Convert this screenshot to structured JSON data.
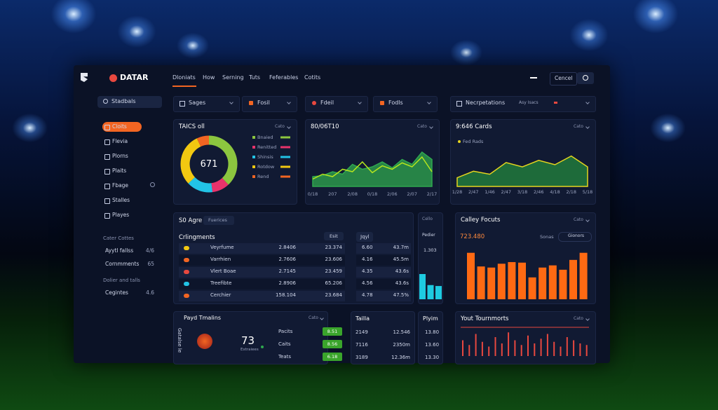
{
  "header": {
    "logo": "DATAR",
    "nav": [
      "Dloniats",
      "How",
      "Serning",
      "Tuts",
      "Feferables",
      "Cotits"
    ],
    "action": "Cencel"
  },
  "sidebar": {
    "search": "Stadbals",
    "items": [
      "Cloits",
      "Flevia",
      "Plorns",
      "Plaits",
      "Fbage",
      "Stalles",
      "Playes"
    ],
    "sections": [
      {
        "title": "Cater Cottes",
        "items": [
          {
            "label": "Ayytl fallss",
            "value": "4/6"
          },
          {
            "label": "Cornmments",
            "value": "65"
          }
        ]
      },
      {
        "title": "Dolier and talls",
        "items": [
          {
            "label": "Cegintes",
            "value": "4.6"
          }
        ]
      }
    ]
  },
  "filters": [
    "Sages",
    "Fosil",
    "Fdeil",
    "Fodls",
    "Necrpetations"
  ],
  "filter_note": "Asy Isacs",
  "table": {
    "title": "S0 Agre",
    "tab": "Fuerices",
    "heading": "Crlingments",
    "button": "Esit",
    "rows": [
      [
        "Veyrfume",
        "2.8406",
        "23.374"
      ],
      [
        "Varrhien",
        "2.7606",
        "23.606"
      ],
      [
        "Vlert Boae",
        "2.7145",
        "23.459"
      ],
      [
        "Treefibte",
        "2.8906",
        "65.206"
      ],
      [
        "Cerchier",
        "158.104",
        "23.684"
      ]
    ]
  },
  "side_table": {
    "title": "Jqyl",
    "rows": [
      [
        "6.60",
        "43.7m"
      ],
      [
        "4.16",
        "45.5m"
      ],
      [
        "4.35",
        "43.6s"
      ],
      [
        "4.56",
        "43.6s"
      ],
      [
        "4.78",
        "47.5%"
      ]
    ]
  },
  "player": {
    "title": "Payd Tmalins",
    "action": "Cato",
    "side_label": "Gatalse le",
    "score": "73",
    "score_label": "Extraiees",
    "rows": [
      {
        "label": "Pacits",
        "value": "8.51"
      },
      {
        "label": "Caits",
        "value": "8.56"
      },
      {
        "label": "Teats",
        "value": "6.18"
      }
    ]
  },
  "tailla": {
    "title": "Tailla",
    "rows": [
      [
        "2149",
        "12.546"
      ],
      [
        "7116",
        "2350m"
      ],
      [
        "3189",
        "12.36m"
      ]
    ]
  },
  "plyim": {
    "title": "Plyim",
    "values": [
      "13.80",
      "13.60",
      "13.30"
    ]
  },
  "chart_data": [
    {
      "type": "pie",
      "title": "TAICS oll",
      "action": "Cato",
      "center_label": "671",
      "categories": [
        "Bnaied",
        "Renitted",
        "Shinsis",
        "Rotdow",
        "Rend"
      ],
      "values": [
        38,
        10,
        15,
        30,
        7
      ],
      "colors": [
        "#8cc63f",
        "#e8336b",
        "#22c3e6",
        "#f2c811",
        "#f26522"
      ]
    },
    {
      "type": "line",
      "title": "80/06T10",
      "action": "Cato",
      "categories": [
        "0/18",
        null,
        "207",
        null,
        "2/08",
        null,
        "0/18",
        null,
        "2/06",
        null,
        "2/07",
        null,
        "2/17"
      ],
      "ylim": [
        0,
        100
      ],
      "series": [
        {
          "color": "#2fa84f",
          "values": [
            20,
            22,
            30,
            25,
            45,
            35,
            40,
            50,
            38,
            55,
            45,
            70,
            55
          ]
        },
        {
          "color": "#b5e61d",
          "values": [
            15,
            25,
            20,
            35,
            30,
            50,
            28,
            42,
            35,
            48,
            40,
            60,
            30
          ]
        }
      ]
    },
    {
      "type": "area",
      "title": "9:646 Cards",
      "action": "Cato",
      "legend": "Fed Rads",
      "color": "#e6d51e",
      "categories": [
        "1/28",
        "2/47",
        "1/46",
        "2/47",
        "3/18",
        "2/46",
        "4/18",
        "2/18",
        "5/18"
      ],
      "values": [
        20,
        35,
        28,
        55,
        45,
        60,
        50,
        70,
        45
      ],
      "ylim": [
        0,
        100
      ]
    },
    {
      "type": "bar",
      "title": "Calley Focuts",
      "action": "Cato",
      "headline": "723.480",
      "legend": "Sonas",
      "button": "Gionors",
      "color": "#ff6a13",
      "values": [
        85,
        60,
        58,
        65,
        68,
        67,
        40,
        58,
        62,
        54,
        72,
        85
      ],
      "ylim": [
        0,
        100
      ]
    },
    {
      "type": "spike",
      "title": "Yout Tournmorts",
      "action": "Cato",
      "color": "#e8483f",
      "values": [
        50,
        35,
        70,
        45,
        30,
        60,
        40,
        75,
        50,
        35,
        65,
        40,
        55,
        70,
        45,
        30,
        60,
        50,
        40,
        35
      ],
      "ylim": [
        0,
        100
      ]
    },
    {
      "type": "bar",
      "title": "Pedier",
      "action": "Cello",
      "headline": "1.303",
      "color": "#1ecbe1",
      "values": [
        80,
        45,
        42
      ],
      "ylim": [
        0,
        100
      ]
    }
  ]
}
